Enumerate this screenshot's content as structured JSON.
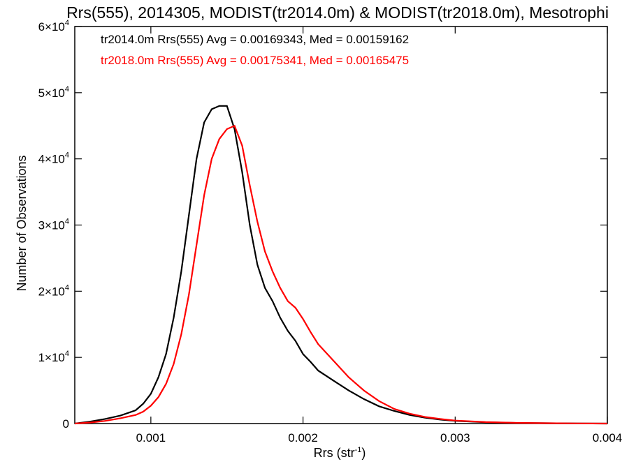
{
  "chart_data": {
    "type": "line",
    "title": "Rrs(555), 2014305, MODIST(tr2014.0m) & MODIST(tr2018.0m), Mesotrophi",
    "xlabel": "Rrs (str",
    "xlabel_sup": "-1",
    "xlabel_close": ")",
    "ylabel": "Number of Observations",
    "xlim": [
      0.0005,
      0.004
    ],
    "ylim": [
      0,
      60000
    ],
    "x_ticks": [
      0.001,
      0.002,
      0.003,
      0.004
    ],
    "x_tick_labels": [
      "0.001",
      "0.002",
      "0.003",
      "0.004"
    ],
    "y_ticks": [
      0,
      10000,
      20000,
      30000,
      40000,
      50000,
      60000
    ],
    "y_tick_labels": [
      {
        "base": "0",
        "exp": ""
      },
      {
        "base": "1×10",
        "exp": "4"
      },
      {
        "base": "2×10",
        "exp": "4"
      },
      {
        "base": "3×10",
        "exp": "4"
      },
      {
        "base": "4×10",
        "exp": "4"
      },
      {
        "base": "5×10",
        "exp": "4"
      },
      {
        "base": "6×10",
        "exp": "4"
      }
    ],
    "series": [
      {
        "name": "tr2014.0m",
        "color": "#000000",
        "legend": "tr2014.0m Rrs(555) Avg = 0.00169343, Med = 0.00159162",
        "x": [
          0.0005,
          0.0006,
          0.0007,
          0.0008,
          0.0009,
          0.00095,
          0.001,
          0.00105,
          0.0011,
          0.00115,
          0.0012,
          0.00125,
          0.0013,
          0.00135,
          0.0014,
          0.00145,
          0.0015,
          0.00155,
          0.0016,
          0.00165,
          0.0017,
          0.00175,
          0.0018,
          0.00185,
          0.0019,
          0.00195,
          0.002,
          0.00205,
          0.0021,
          0.0022,
          0.0023,
          0.0024,
          0.0025,
          0.0026,
          0.0027,
          0.0028,
          0.0029,
          0.003,
          0.0032,
          0.0034,
          0.0036,
          0.0038,
          0.004
        ],
        "y": [
          0,
          300,
          700,
          1200,
          2000,
          3000,
          4500,
          7000,
          10500,
          16000,
          23000,
          31500,
          40000,
          45500,
          47500,
          48000,
          48000,
          44500,
          38000,
          30000,
          24000,
          20500,
          18500,
          16000,
          14000,
          12500,
          10500,
          9300,
          8000,
          6500,
          5000,
          3700,
          2600,
          1900,
          1300,
          900,
          600,
          400,
          200,
          100,
          50,
          20,
          0
        ]
      },
      {
        "name": "tr2018.0m",
        "color": "#ff0000",
        "legend": "tr2018.0m Rrs(555) Avg = 0.00175341, Med = 0.00165475",
        "x": [
          0.0005,
          0.0006,
          0.0007,
          0.0008,
          0.0009,
          0.00095,
          0.001,
          0.00105,
          0.0011,
          0.00115,
          0.0012,
          0.00125,
          0.0013,
          0.00135,
          0.0014,
          0.00145,
          0.0015,
          0.00155,
          0.0016,
          0.00165,
          0.0017,
          0.00175,
          0.0018,
          0.00185,
          0.0019,
          0.00195,
          0.002,
          0.00205,
          0.0021,
          0.0022,
          0.0023,
          0.0024,
          0.0025,
          0.0026,
          0.0027,
          0.0028,
          0.0029,
          0.003,
          0.0032,
          0.0034,
          0.0036,
          0.0038,
          0.004
        ],
        "y": [
          0,
          150,
          400,
          800,
          1300,
          1800,
          2700,
          4000,
          6000,
          9000,
          13500,
          19500,
          27000,
          34500,
          40000,
          43000,
          44500,
          45000,
          42000,
          36000,
          30500,
          26000,
          23000,
          20500,
          18500,
          17500,
          15800,
          13800,
          12000,
          9500,
          7000,
          5000,
          3400,
          2200,
          1500,
          1000,
          700,
          450,
          220,
          110,
          50,
          20,
          0
        ]
      }
    ],
    "grid": false,
    "legend_position": "top-left"
  }
}
